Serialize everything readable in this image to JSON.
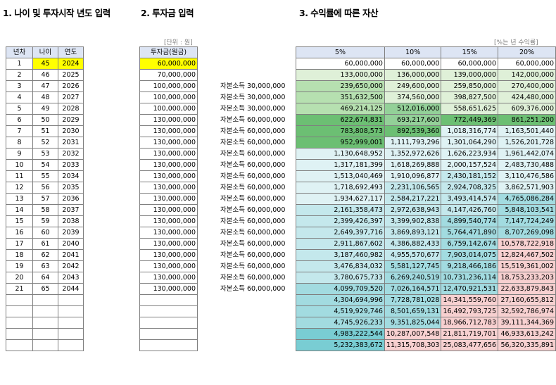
{
  "titles": {
    "section1": "1. 나이 및 투자시작 년도 입력",
    "section2": "2. 투자금 입력",
    "section3": "3. 수익률에 따른 자산"
  },
  "units": {
    "investment": "[단위 : 원]",
    "returns": "[%는 년 수익률]"
  },
  "table1": {
    "headers": [
      "년차",
      "나이",
      "연도"
    ],
    "rows": [
      [
        "1",
        "45",
        "2024"
      ],
      [
        "2",
        "46",
        "2025"
      ],
      [
        "3",
        "47",
        "2026"
      ],
      [
        "4",
        "48",
        "2027"
      ],
      [
        "5",
        "49",
        "2028"
      ],
      [
        "6",
        "50",
        "2029"
      ],
      [
        "7",
        "51",
        "2030"
      ],
      [
        "8",
        "52",
        "2031"
      ],
      [
        "9",
        "53",
        "2032"
      ],
      [
        "10",
        "54",
        "2033"
      ],
      [
        "11",
        "55",
        "2034"
      ],
      [
        "12",
        "56",
        "2035"
      ],
      [
        "13",
        "57",
        "2036"
      ],
      [
        "14",
        "58",
        "2037"
      ],
      [
        "15",
        "59",
        "2038"
      ],
      [
        "16",
        "60",
        "2039"
      ],
      [
        "17",
        "61",
        "2040"
      ],
      [
        "18",
        "62",
        "2041"
      ],
      [
        "19",
        "63",
        "2042"
      ],
      [
        "20",
        "64",
        "2043"
      ],
      [
        "21",
        "65",
        "2044"
      ]
    ],
    "empty_rows": 5
  },
  "table2": {
    "header": "투자금(원금)",
    "rows": [
      "60,000,000",
      "70,000,000",
      "100,000,000",
      "100,000,000",
      "100,000,000",
      "130,000,000",
      "130,000,000",
      "130,000,000",
      "130,000,000",
      "130,000,000",
      "130,000,000",
      "130,000,000",
      "130,000,000",
      "130,000,000",
      "130,000,000",
      "130,000,000",
      "130,000,000",
      "130,000,000",
      "130,000,000",
      "130,000,000",
      "130,000,000"
    ],
    "empty_rows": 5
  },
  "notes": [
    "",
    "",
    "자본소득 30,000,000",
    "자본소득 30,000,000",
    "자본소득 30,000,000",
    "자본소득 60,000,000",
    "자본소득 60,000,000",
    "자본소득 60,000,000",
    "자본소득 60,000,000",
    "자본소득 60,000,000",
    "자본소득 60,000,000",
    "자본소득 60,000,000",
    "자본소득 60,000,000",
    "자본소득 60,000,000",
    "자본소득 60,000,000",
    "자본소득 60,000,000",
    "자본소득 60,000,000",
    "자본소득 60,000,000",
    "자본소득 60,000,000",
    "자본소득 60,000,000",
    "자본소득 60,000,000"
  ],
  "table3": {
    "headers": [
      "5%",
      "10%",
      "15%",
      "20%"
    ],
    "rows": [
      [
        "60,000,000",
        "60,000,000",
        "60,000,000",
        "60,000,000"
      ],
      [
        "133,000,000",
        "136,000,000",
        "139,000,000",
        "142,000,000"
      ],
      [
        "239,650,000",
        "249,600,000",
        "259,850,000",
        "270,400,000"
      ],
      [
        "351,632,500",
        "374,560,000",
        "398,827,500",
        "424,480,000"
      ],
      [
        "469,214,125",
        "512,016,000",
        "558,651,625",
        "609,376,000"
      ],
      [
        "622,674,831",
        "693,217,600",
        "772,449,369",
        "861,251,200"
      ],
      [
        "783,808,573",
        "892,539,360",
        "1,018,316,774",
        "1,163,501,440"
      ],
      [
        "952,999,001",
        "1,111,793,296",
        "1,301,064,290",
        "1,526,201,728"
      ],
      [
        "1,130,648,952",
        "1,352,972,626",
        "1,626,223,934",
        "1,961,442,074"
      ],
      [
        "1,317,181,399",
        "1,618,269,888",
        "2,000,157,524",
        "2,483,730,488"
      ],
      [
        "1,513,040,469",
        "1,910,096,877",
        "2,430,181,152",
        "3,110,476,586"
      ],
      [
        "1,718,692,493",
        "2,231,106,565",
        "2,924,708,325",
        "3,862,571,903"
      ],
      [
        "1,934,627,117",
        "2,584,217,221",
        "3,493,414,574",
        "4,765,086,284"
      ],
      [
        "2,161,358,473",
        "2,972,638,943",
        "4,147,426,760",
        "5,848,103,541"
      ],
      [
        "2,399,426,397",
        "3,399,902,838",
        "4,899,540,774",
        "7,147,724,249"
      ],
      [
        "2,649,397,716",
        "3,869,893,121",
        "5,764,471,890",
        "8,707,269,098"
      ],
      [
        "2,911,867,602",
        "4,386,882,433",
        "6,759,142,674",
        "10,578,722,918"
      ],
      [
        "3,187,460,982",
        "4,955,570,677",
        "7,903,014,075",
        "12,824,467,502"
      ],
      [
        "3,476,834,032",
        "5,581,127,745",
        "9,218,466,186",
        "15,519,361,002"
      ],
      [
        "3,780,675,733",
        "6,269,240,519",
        "10,731,236,114",
        "18,753,233,203"
      ],
      [
        "4,099,709,520",
        "7,026,164,571",
        "12,470,921,531",
        "22,633,879,843"
      ],
      [
        "4,304,694,996",
        "7,728,781,028",
        "14,341,559,760",
        "27,160,655,812"
      ],
      [
        "4,519,929,746",
        "8,501,659,131",
        "16,492,793,725",
        "32,592,786,974"
      ],
      [
        "4,745,926,233",
        "9,351,825,044",
        "18,966,712,783",
        "39,111,344,369"
      ],
      [
        "4,983,222,544",
        "10,287,007,548",
        "21,811,719,701",
        "46,933,613,242"
      ],
      [
        "5,232,383,672",
        "11,315,708,303",
        "25,083,477,656",
        "56,320,335,891"
      ]
    ],
    "colors": {
      "light_green": "#dff0d8",
      "mid_green": "#b6e0b0",
      "green": "#93d098",
      "dark_green": "#6cbf73",
      "pale_cyan": "#dff2f4",
      "light_cyan": "#c4e8ec",
      "cyan": "#a2dbe0",
      "dark_cyan": "#79cdd3",
      "pink": "#f7d0d0"
    }
  }
}
